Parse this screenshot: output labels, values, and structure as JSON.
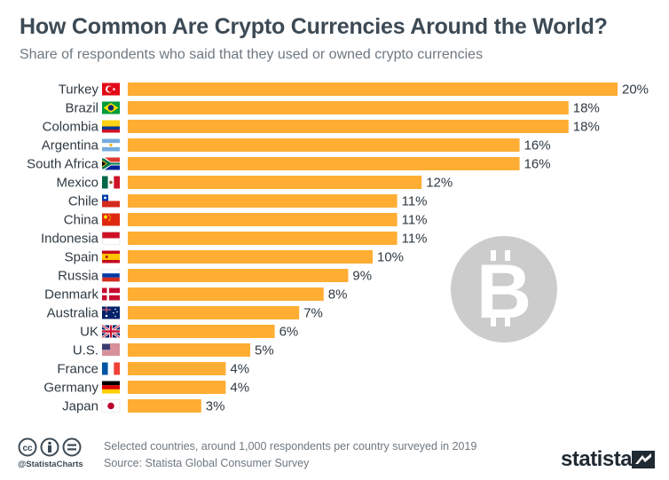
{
  "header": {
    "title": "How Common Are Crypto Currencies Around the World?",
    "subtitle": "Share of respondents who said that they used or owned crypto currencies"
  },
  "chart_data": {
    "type": "bar",
    "orientation": "horizontal",
    "title": "How Common Are Crypto Currencies Around the World?",
    "subtitle": "Share of respondents who said that they used or owned crypto currencies",
    "categories": [
      "Turkey",
      "Brazil",
      "Colombia",
      "Argentina",
      "South Africa",
      "Mexico",
      "Chile",
      "China",
      "Indonesia",
      "Spain",
      "Russia",
      "Denmark",
      "Australia",
      "UK",
      "U.S.",
      "France",
      "Germany",
      "Japan"
    ],
    "values": [
      20,
      18,
      18,
      16,
      16,
      12,
      11,
      11,
      11,
      10,
      9,
      8,
      7,
      6,
      5,
      4,
      4,
      3
    ],
    "value_labels": [
      "20%",
      "18%",
      "18%",
      "16%",
      "16%",
      "12%",
      "11%",
      "11%",
      "11%",
      "10%",
      "9%",
      "8%",
      "7%",
      "6%",
      "5%",
      "4%",
      "4%",
      "3%"
    ],
    "unit": "%",
    "xlim": [
      0,
      20
    ],
    "grid": false,
    "bar_color": "#ffad33",
    "flag_icons": [
      "turkey-flag-icon",
      "brazil-flag-icon",
      "colombia-flag-icon",
      "argentina-flag-icon",
      "south-africa-flag-icon",
      "mexico-flag-icon",
      "chile-flag-icon",
      "china-flag-icon",
      "indonesia-flag-icon",
      "spain-flag-icon",
      "russia-flag-icon",
      "denmark-flag-icon",
      "australia-flag-icon",
      "uk-flag-icon",
      "us-flag-icon",
      "france-flag-icon",
      "germany-flag-icon",
      "japan-flag-icon"
    ]
  },
  "decoration": {
    "watermark_icon": "bitcoin-icon",
    "watermark_color": "#cccccc"
  },
  "footer": {
    "note": "Selected countries, around 1,000 respondents per country surveyed in 2019",
    "source": "Source: Statista Global Consumer Survey",
    "handle": "@StatistaCharts",
    "logo": "statista",
    "license_icons": [
      "creative-commons-icon",
      "attribution-icon",
      "no-derivatives-icon"
    ]
  },
  "colors": {
    "title": "#3c4a55",
    "text": "#2f3a42",
    "muted": "#6e7880",
    "bar": "#ffad33"
  }
}
